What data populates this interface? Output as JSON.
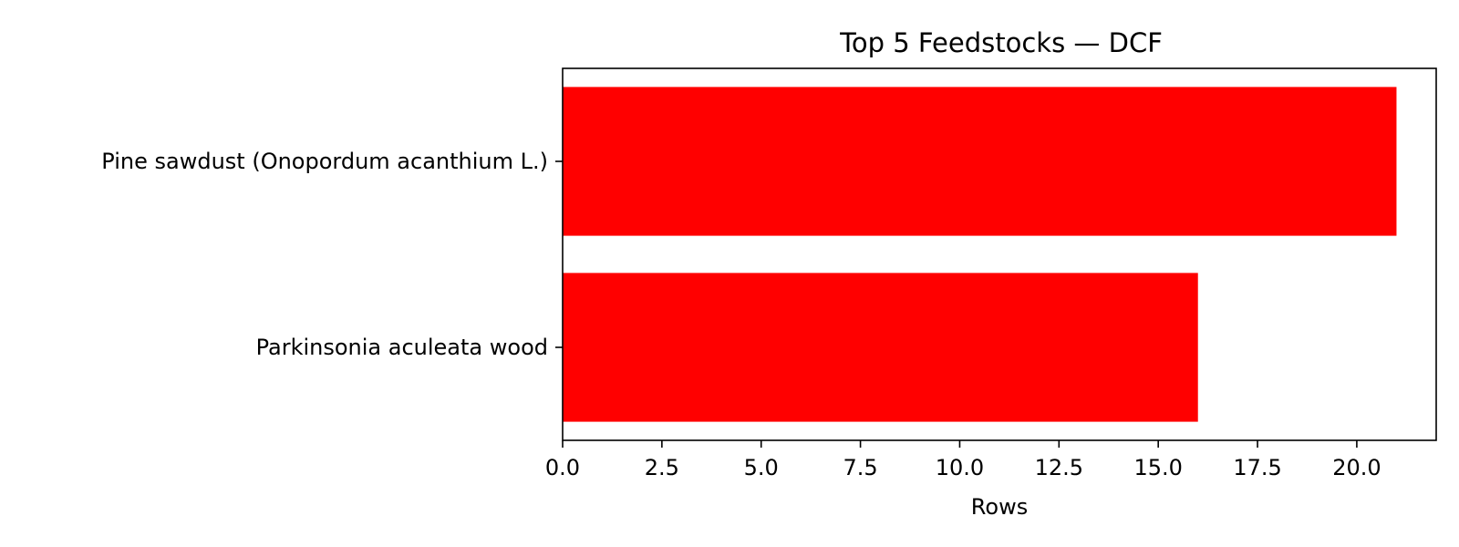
{
  "chart_data": {
    "type": "bar",
    "orientation": "horizontal",
    "title": "Top 5 Feedstocks — DCF",
    "xlabel": "Rows",
    "ylabel": "",
    "categories": [
      "Pine sawdust (Onopordum acanthium L.)",
      "Parkinsonia aculeata wood"
    ],
    "values": [
      21,
      16
    ],
    "xlim": [
      0,
      22
    ],
    "xticks": [
      "0.0",
      "2.5",
      "5.0",
      "7.5",
      "10.0",
      "12.5",
      "15.0",
      "17.5",
      "20.0"
    ],
    "grid": false,
    "bar_color": "#ff0000"
  }
}
